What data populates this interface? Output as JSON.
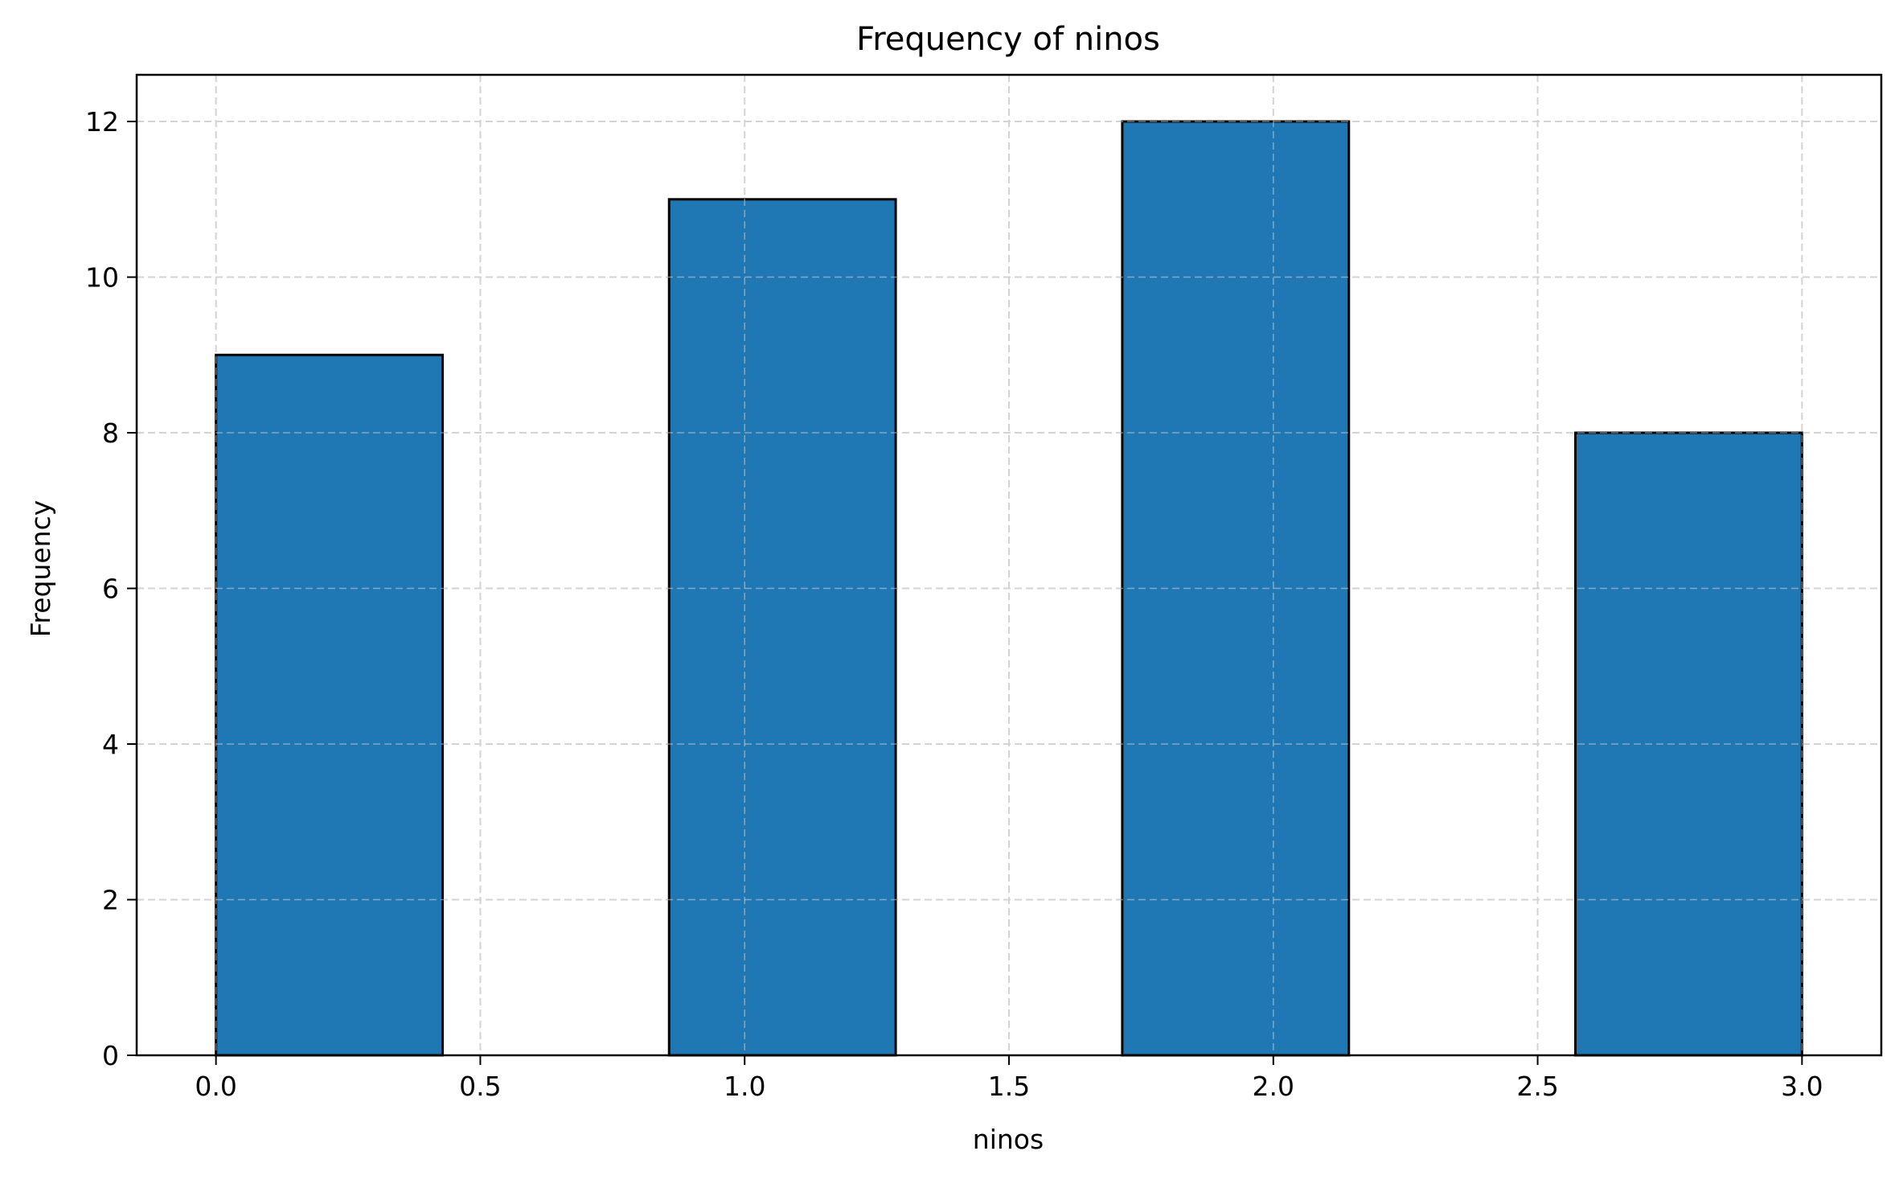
{
  "chart_data": {
    "type": "bar",
    "title": "Frequency of ninos",
    "xlabel": "ninos",
    "ylabel": "Frequency",
    "xlim": [
      -0.15,
      3.15
    ],
    "ylim": [
      0,
      12.6
    ],
    "xticks": [
      {
        "value": 0.0,
        "label": "0.0"
      },
      {
        "value": 0.5,
        "label": "0.5"
      },
      {
        "value": 1.0,
        "label": "1.0"
      },
      {
        "value": 1.5,
        "label": "1.5"
      },
      {
        "value": 2.0,
        "label": "2.0"
      },
      {
        "value": 2.5,
        "label": "2.5"
      },
      {
        "value": 3.0,
        "label": "3.0"
      }
    ],
    "yticks": [
      {
        "value": 0,
        "label": "0"
      },
      {
        "value": 2,
        "label": "2"
      },
      {
        "value": 4,
        "label": "4"
      },
      {
        "value": 6,
        "label": "6"
      },
      {
        "value": 8,
        "label": "8"
      },
      {
        "value": 10,
        "label": "10"
      },
      {
        "value": 12,
        "label": "12"
      }
    ],
    "bins": [
      {
        "x0": 0.0,
        "x1": 0.4286,
        "value": 9
      },
      {
        "x0": 0.4286,
        "x1": 0.8571,
        "value": 0
      },
      {
        "x0": 0.8571,
        "x1": 1.2857,
        "value": 11
      },
      {
        "x0": 1.2857,
        "x1": 1.7143,
        "value": 0
      },
      {
        "x0": 1.7143,
        "x1": 2.1429,
        "value": 12
      },
      {
        "x0": 2.1429,
        "x1": 2.5714,
        "value": 0
      },
      {
        "x0": 2.5714,
        "x1": 3.0,
        "value": 8
      }
    ],
    "grid": true,
    "colors": {
      "bar_fill": "#1f77b4",
      "bar_edge": "#000000",
      "grid": "#d3d3d3"
    }
  }
}
